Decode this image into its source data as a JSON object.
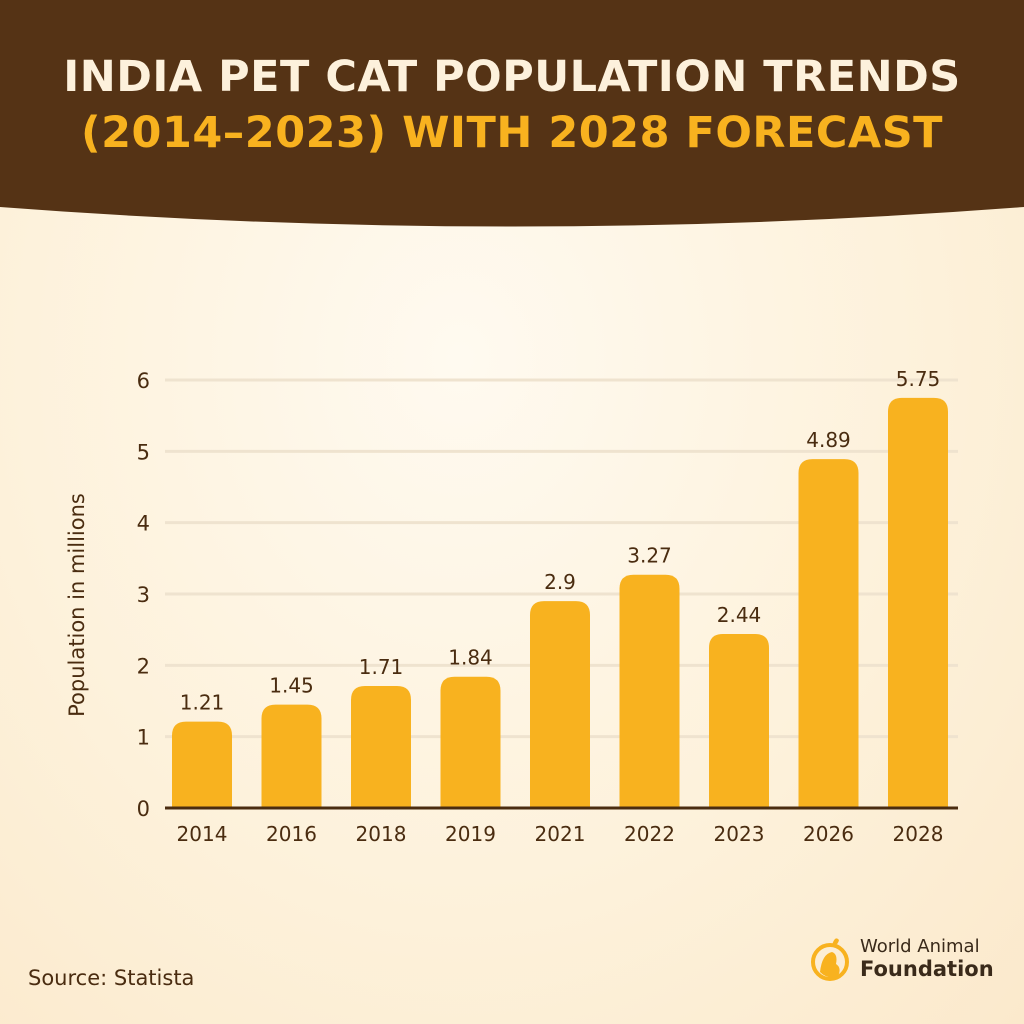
{
  "header": {
    "title_line1": "INDIA PET CAT POPULATION TRENDS",
    "title_line2": "(2014–2023) WITH 2028 FORECAST"
  },
  "colors": {
    "header_bg": "#553315",
    "bar": "#f8b21f",
    "title_accent": "#f8b21f",
    "text": "#4a2c10"
  },
  "chart_data": {
    "type": "bar",
    "title": "INDIA PET CAT POPULATION TRENDS (2014–2023) WITH 2028 FORECAST",
    "categories": [
      "2014",
      "2016",
      "2018",
      "2019",
      "2021",
      "2022",
      "2023",
      "2026",
      "2028"
    ],
    "values": [
      1.21,
      1.45,
      1.71,
      1.84,
      2.9,
      3.27,
      2.44,
      4.89,
      5.75
    ],
    "data_labels": [
      "1.21",
      "1.45",
      "1.71",
      "1.84",
      "2.9",
      "3.27",
      "2.44",
      "4.89",
      "5.75"
    ],
    "xlabel": "",
    "ylabel": "Population in millions",
    "ylim": [
      0,
      6
    ],
    "yticks": [
      "0",
      "1",
      "2",
      "3",
      "4",
      "5",
      "6"
    ],
    "grid": true
  },
  "footer": {
    "source": "Source: Statista",
    "logo_line1": "World Animal",
    "logo_line2": "Foundation"
  }
}
